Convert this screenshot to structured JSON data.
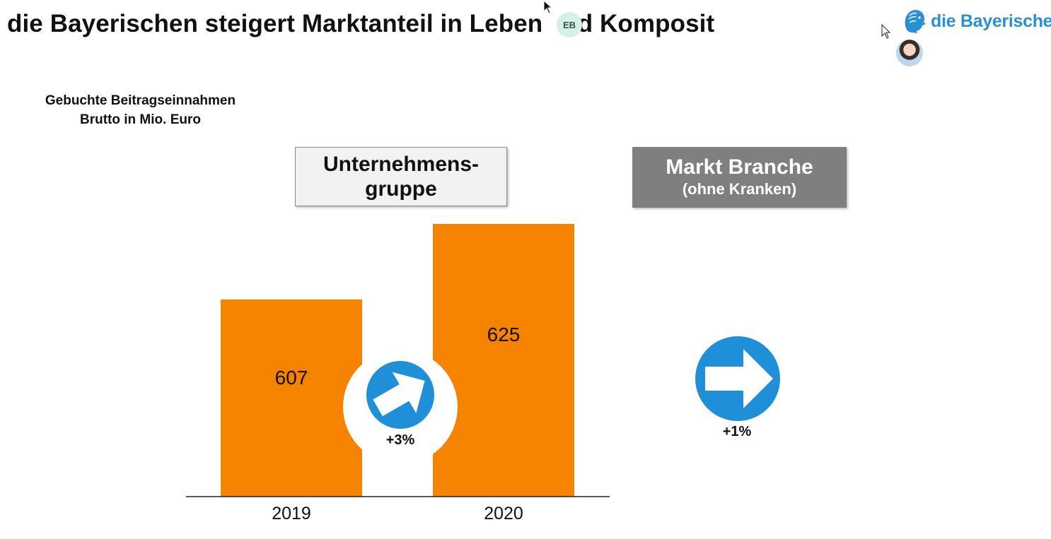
{
  "header": {
    "title": "die Bayerischen steigert Marktanteil in Leben",
    "title_rest": "nd Komposit",
    "badge": "EB",
    "logo_text": "die Bayerische"
  },
  "measure": {
    "line1": "Gebuchte Beitragseinnahmen",
    "line2": "Brutto in Mio. Euro"
  },
  "group_box": {
    "line1": "Unternehmens-",
    "line2": "gruppe"
  },
  "market_box": {
    "line1": "Markt Branche",
    "line2": "(ohne Kranken)"
  },
  "colors": {
    "bar": "#f58300",
    "arrow_circle": "#1f8fd8",
    "logo": "#2b8fd6",
    "market_box": "#7f7f7f"
  },
  "icons": {
    "logo": "lion-head-icon",
    "growth_arrow": "arrow-circle-icon",
    "market_arrow": "arrow-circle-icon"
  },
  "chart_data": {
    "type": "bar",
    "categories": [
      "2019",
      "2020"
    ],
    "values": [
      607,
      625
    ],
    "value_labels": [
      "607",
      "625"
    ],
    "growth_labels": {
      "group": "+3%",
      "market": "+1%"
    },
    "grid": false
  }
}
